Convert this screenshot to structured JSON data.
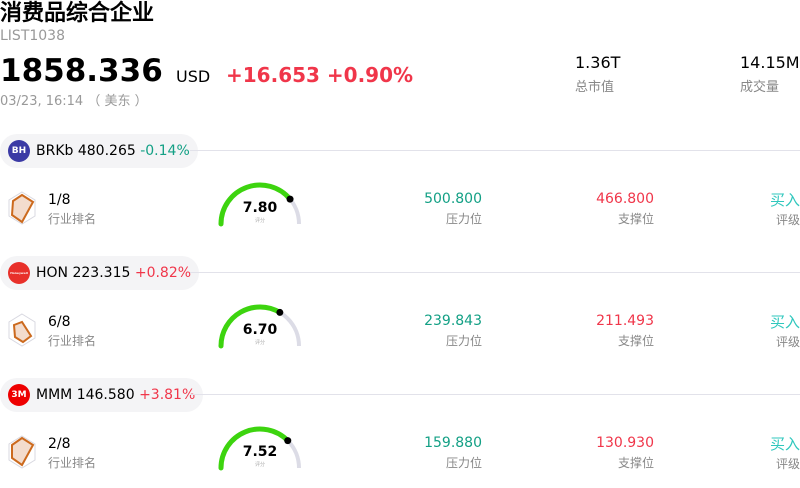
{
  "header": {
    "title": "消费品综合企业",
    "code": "LIST1038",
    "price": "1858.336",
    "currency": "USD",
    "change": "+16.653",
    "change_pct": "+0.90%",
    "time": "03/23, 16:14 （ 美东 ）",
    "market_cap": "1.36T",
    "market_cap_label": "总市值",
    "volume": "14.15M",
    "volume_label": "成交量"
  },
  "colors": {
    "up": "#f0364a",
    "down": "#13a085",
    "gauge": "#3dd40f",
    "rating": "#2fc7bd"
  },
  "stocks": [
    {
      "logo": "BH",
      "logo_color": "#3b3aa5",
      "ticker": "BRKb",
      "price": "480.265",
      "change": "-0.14%",
      "dir": "down",
      "rank": "1/8",
      "rank_label": "行业排名",
      "score": "7.80",
      "score_label": "评分",
      "resistance": "500.800",
      "resistance_label": "压力位",
      "support": "466.800",
      "support_label": "支撑位",
      "rating": "买入",
      "rating_label": "评级"
    },
    {
      "logo": "Honeywell",
      "logo_color": "#e8302a",
      "ticker": "HON",
      "price": "223.315",
      "change": "+0.82%",
      "dir": "up",
      "rank": "6/8",
      "rank_label": "行业排名",
      "score": "6.70",
      "score_label": "评分",
      "resistance": "239.843",
      "resistance_label": "压力位",
      "support": "211.493",
      "support_label": "支撑位",
      "rating": "买入",
      "rating_label": "评级"
    },
    {
      "logo": "3M",
      "logo_color": "#ee0000",
      "ticker": "MMM",
      "price": "146.580",
      "change": "+3.81%",
      "dir": "up",
      "rank": "2/8",
      "rank_label": "行业排名",
      "score": "7.52",
      "score_label": "评分",
      "resistance": "159.880",
      "resistance_label": "压力位",
      "support": "130.930",
      "support_label": "支撑位",
      "rating": "买入",
      "rating_label": "评级"
    }
  ]
}
